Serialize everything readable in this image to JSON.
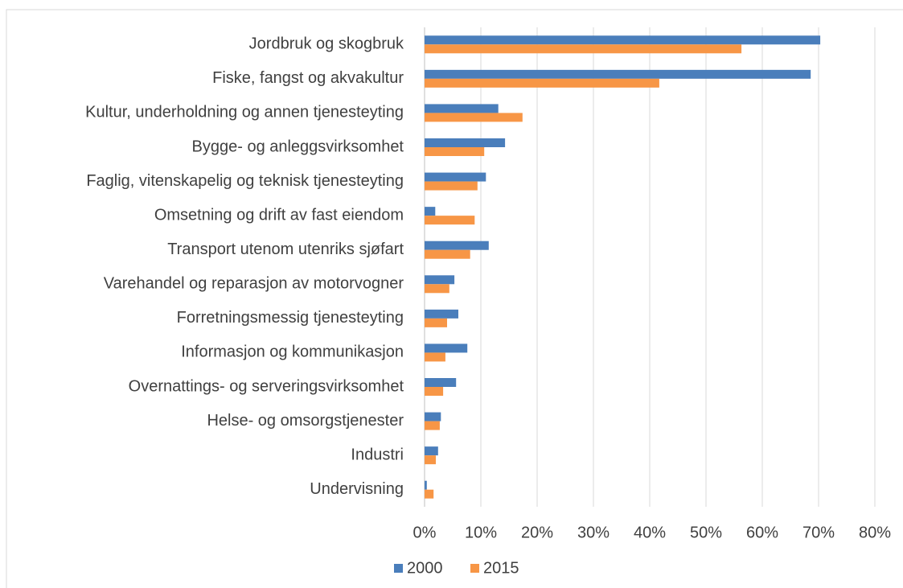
{
  "chart_data": {
    "type": "bar",
    "orientation": "horizontal",
    "categories": [
      "Jordbruk og skogbruk",
      "Fiske, fangst og akvakultur",
      "Kultur, underholdning og annen tjenesteyting",
      "Bygge- og anleggsvirksomhet",
      "Faglig, vitenskapelig og teknisk tjenesteyting",
      "Omsetning og drift av fast eiendom",
      "Transport utenom utenriks sjøfart",
      "Varehandel og reparasjon av motorvogner",
      "Forretningsmessig tjenesteyting",
      "Informasjon og kommunikasjon",
      "Overnattings- og serveringsvirksomhet",
      "Helse- og omsorgstjenester",
      "Industri",
      "Undervisning"
    ],
    "series": [
      {
        "name": "2000",
        "color": "#4a7ebb",
        "values": [
          70.3,
          68.6,
          13.1,
          14.3,
          10.9,
          1.9,
          11.4,
          5.3,
          6.0,
          7.6,
          5.6,
          2.9,
          2.4,
          0.4
        ]
      },
      {
        "name": "2015",
        "color": "#f79646",
        "values": [
          56.3,
          41.7,
          17.4,
          10.6,
          9.4,
          8.9,
          8.1,
          4.4,
          4.0,
          3.7,
          3.3,
          2.7,
          2.0,
          1.6
        ]
      }
    ],
    "xlim": [
      0,
      80
    ],
    "xticks": [
      {
        "value": 0,
        "label": "0%"
      },
      {
        "value": 10,
        "label": "10%"
      },
      {
        "value": 20,
        "label": "20%"
      },
      {
        "value": 30,
        "label": "30%"
      },
      {
        "value": 40,
        "label": "40%"
      },
      {
        "value": 50,
        "label": "50%"
      },
      {
        "value": 60,
        "label": "60%"
      },
      {
        "value": 70,
        "label": "70%"
      },
      {
        "value": 80,
        "label": "80%"
      }
    ],
    "grid": true,
    "legend": "bottom"
  }
}
